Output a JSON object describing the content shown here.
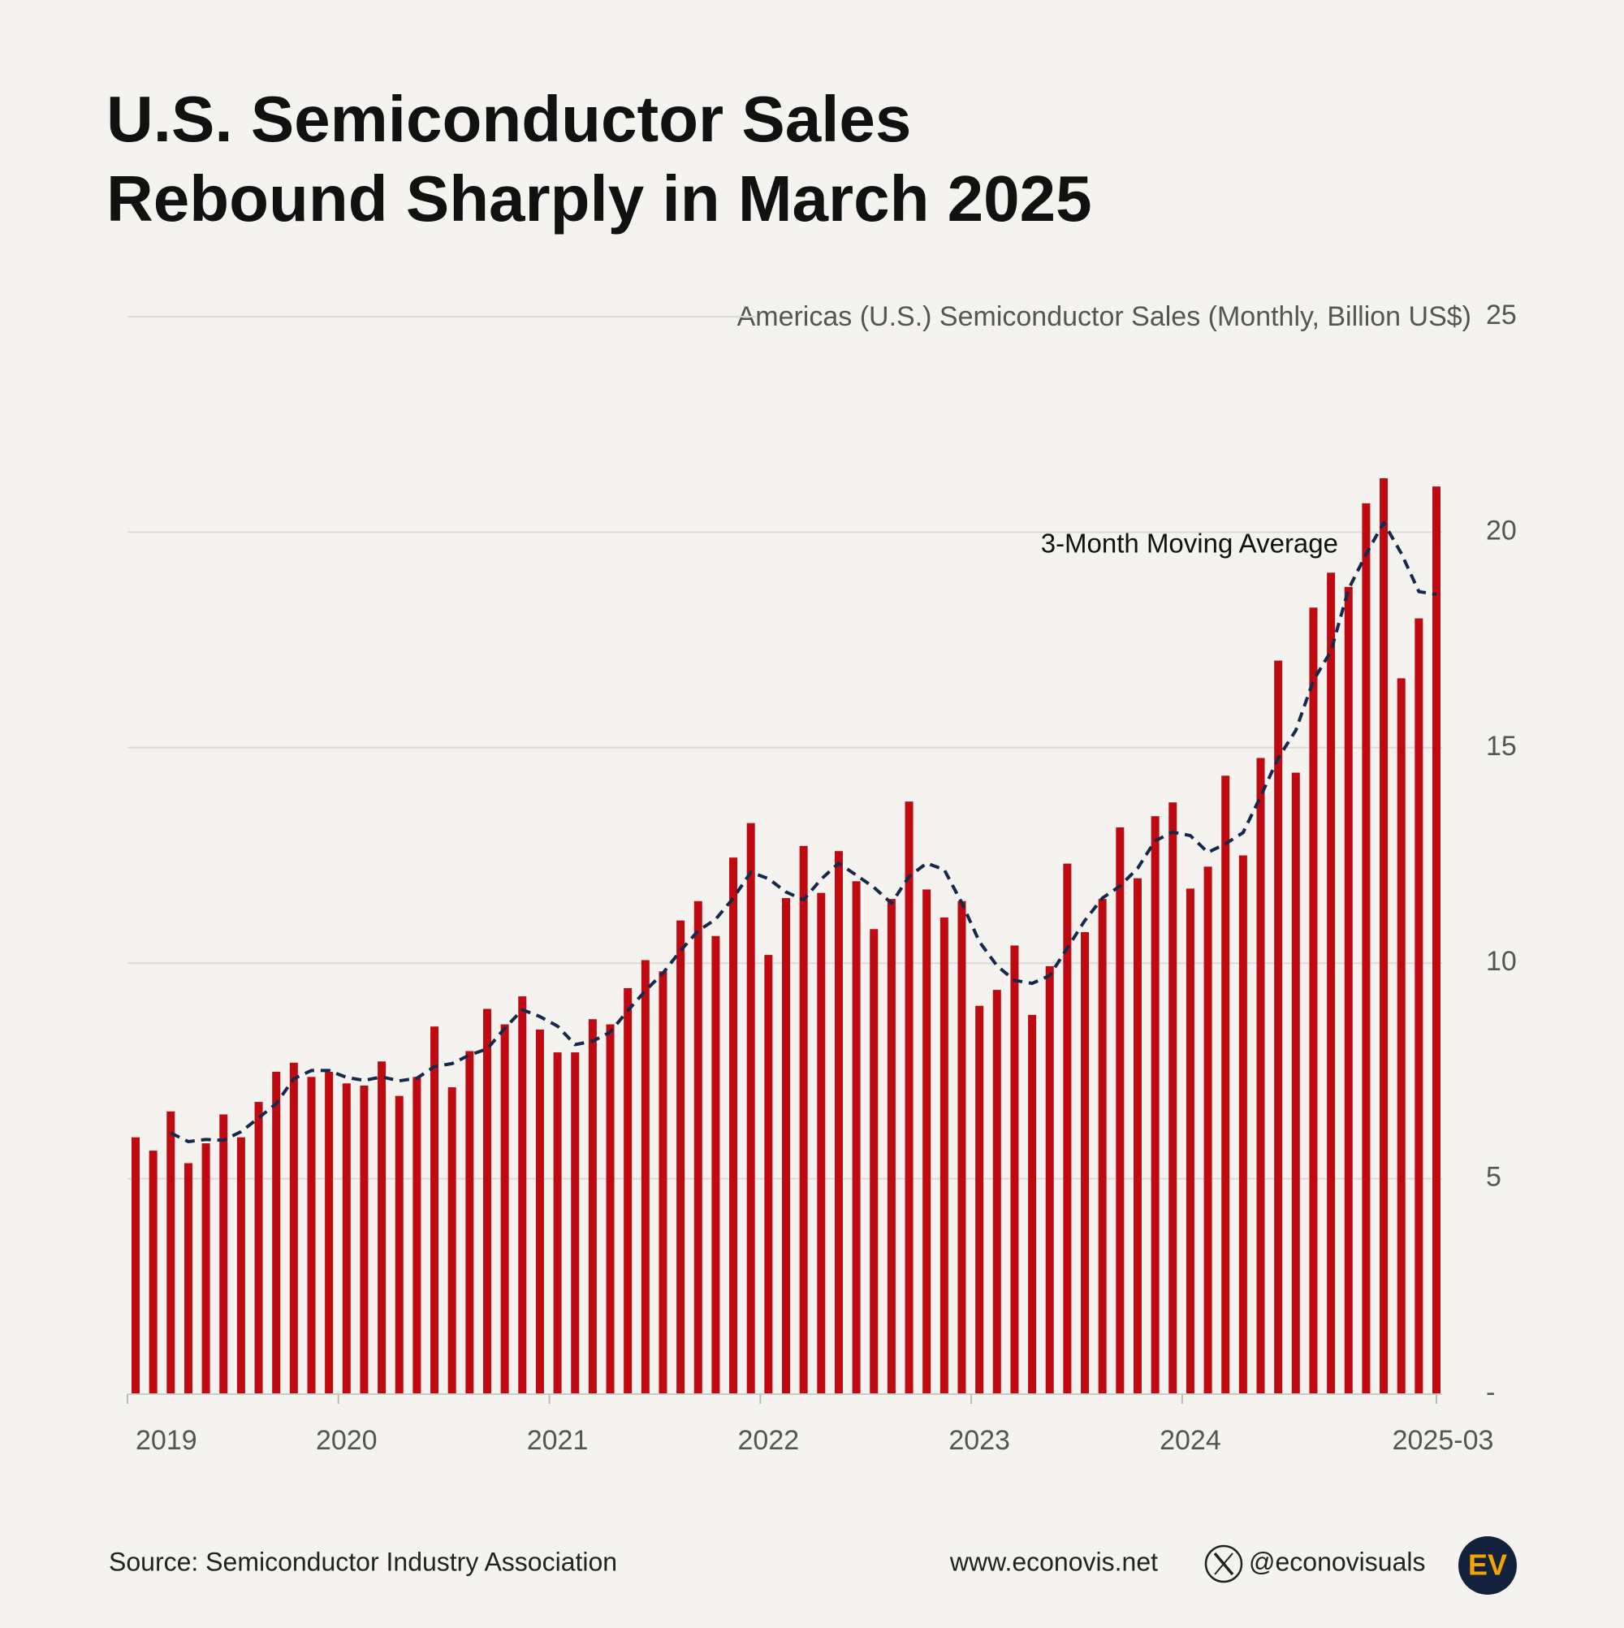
{
  "chart_data": {
    "type": "bar",
    "title": [
      "U.S. Semiconductor Sales",
      "Rebound Sharply in March 2025"
    ],
    "categories": [
      "2019",
      null,
      null,
      null,
      null,
      null,
      null,
      null,
      null,
      null,
      null,
      null,
      "2020",
      null,
      null,
      null,
      null,
      null,
      null,
      null,
      null,
      null,
      null,
      null,
      "2021",
      null,
      null,
      null,
      null,
      null,
      null,
      null,
      null,
      null,
      null,
      null,
      "2022",
      null,
      null,
      null,
      null,
      null,
      null,
      null,
      null,
      null,
      null,
      null,
      "2023",
      null,
      null,
      null,
      null,
      null,
      null,
      null,
      null,
      null,
      null,
      null,
      "2024",
      null,
      null,
      null,
      null,
      null,
      null,
      null,
      null,
      null,
      null,
      null,
      null,
      null,
      "2025-03"
    ],
    "series": [
      {
        "name": "Americas (U.S.) Semiconductor Sales (Monthly, Billion US$)",
        "type": "bar",
        "color": "#c00a12",
        "values": [
          5.96,
          5.65,
          6.56,
          5.36,
          5.82,
          6.49,
          5.96,
          6.78,
          7.48,
          7.69,
          7.36,
          7.48,
          7.21,
          7.16,
          7.72,
          6.92,
          7.36,
          8.53,
          7.12,
          7.96,
          8.94,
          8.58,
          9.23,
          8.46,
          7.93,
          7.93,
          8.7,
          8.58,
          9.42,
          10.07,
          9.81,
          10.99,
          11.44,
          10.63,
          12.45,
          13.25,
          10.19,
          11.51,
          12.72,
          11.63,
          12.6,
          11.9,
          10.79,
          11.49,
          13.75,
          11.71,
          11.06,
          11.44,
          9.01,
          9.38,
          10.41,
          8.8,
          9.93,
          12.31,
          10.72,
          11.49,
          13.15,
          11.97,
          13.41,
          13.73,
          11.73,
          12.24,
          14.35,
          12.5,
          14.76,
          17.02,
          14.42,
          18.25,
          19.06,
          18.73,
          20.67,
          21.25,
          16.61,
          18.0,
          21.06
        ]
      },
      {
        "name": "3-Month Moving Average",
        "type": "line",
        "dashed": true,
        "color": "#17294a",
        "values": [
          null,
          null,
          6.06,
          5.86,
          5.91,
          5.89,
          6.09,
          6.41,
          6.74,
          7.32,
          7.51,
          7.51,
          7.35,
          7.28,
          7.36,
          7.27,
          7.33,
          7.6,
          7.67,
          7.87,
          8.01,
          8.49,
          8.92,
          8.76,
          8.54,
          8.11,
          8.19,
          8.4,
          8.9,
          9.36,
          9.77,
          10.29,
          10.75,
          11.02,
          11.51,
          12.11,
          11.96,
          11.65,
          11.47,
          11.95,
          12.32,
          12.04,
          11.76,
          11.39,
          12.01,
          12.32,
          12.17,
          11.4,
          10.5,
          9.94,
          9.6,
          9.53,
          9.71,
          10.35,
          10.99,
          11.51,
          11.79,
          12.2,
          12.84,
          13.04,
          12.96,
          12.57,
          12.77,
          13.03,
          13.87,
          14.76,
          15.4,
          16.56,
          17.24,
          18.68,
          19.49,
          20.22,
          19.51,
          18.62,
          18.56
        ]
      }
    ],
    "ylim": [
      0,
      25
    ],
    "yticks": [
      {
        "value": 0,
        "label": "-"
      },
      5,
      10,
      15,
      20,
      25
    ],
    "grid": true
  },
  "footer": {
    "source": "Source: Semiconductor Industry Association",
    "website": "www.econovis.net",
    "handle": "@econovisuals",
    "logo": "EV"
  }
}
